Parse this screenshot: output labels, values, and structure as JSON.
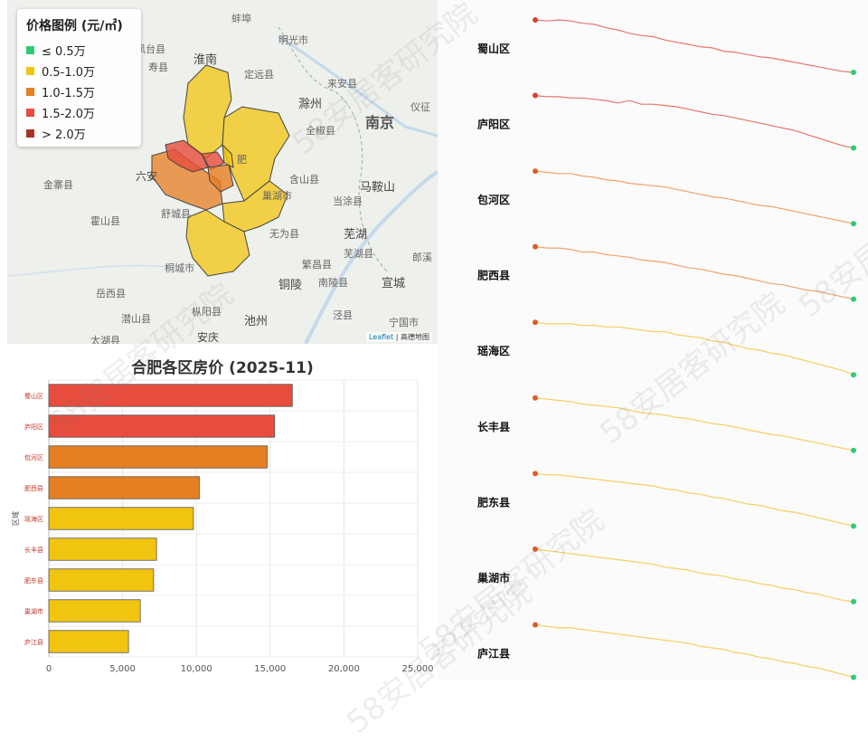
{
  "legend": {
    "title": "价格图例 (元/㎡)",
    "items": [
      {
        "label": "≤ 0.5万",
        "color": "#2ecc71"
      },
      {
        "label": "0.5-1.0万",
        "color": "#f1c40f"
      },
      {
        "label": "1.0-1.5万",
        "color": "#e67e22"
      },
      {
        "label": "1.5-2.0万",
        "color": "#e74c3c"
      },
      {
        "label": "> 2.0万",
        "color": "#a93226"
      }
    ]
  },
  "map": {
    "attribution_link": "Leaflet",
    "attribution_text": "| 高德地图",
    "places": [
      "蚌埠",
      "明光市",
      "凤台县",
      "淮南",
      "寿县",
      "定远县",
      "来安县",
      "滁州",
      "仪征",
      "南京",
      "全椒县",
      "六安",
      "金寨县",
      "马鞍山",
      "含山县",
      "当涂县",
      "霍山县",
      "舒城县",
      "无为县",
      "芜湖",
      "郎溪",
      "繁昌县",
      "芜湖县",
      "铜陵",
      "南陵县",
      "宣城",
      "桐城市",
      "岳西县",
      "潜山县",
      "枞阳县",
      "池州",
      "泾县",
      "宁国市",
      "太湖县",
      "安庆",
      "肥",
      "巢湖市"
    ]
  },
  "chart_data": {
    "type": "bar",
    "title": "合肥各区房价 (2025-11)",
    "ylabel": "区域",
    "categories": [
      "蜀山区",
      "庐阳区",
      "包河区",
      "肥西县",
      "瑶海区",
      "长丰县",
      "肥东县",
      "巢湖市",
      "庐江县"
    ],
    "values": [
      16500,
      15300,
      14800,
      10200,
      9800,
      7300,
      7100,
      6200,
      5400
    ],
    "colors": [
      "#e74c3c",
      "#e74c3c",
      "#e67e22",
      "#e67e22",
      "#f1c40f",
      "#f1c40f",
      "#f1c40f",
      "#f1c40f",
      "#f1c40f"
    ],
    "xlim": [
      0,
      25000
    ],
    "xticks": [
      0,
      5000,
      10000,
      15000,
      20000,
      25000
    ],
    "xtick_labels": [
      "0",
      "5,000",
      "10,000",
      "15,000",
      "20,000",
      "25,000"
    ],
    "grid": true
  },
  "trends": [
    {
      "name": "蜀山区",
      "color": "#e8756b",
      "start_color": "#d9412f",
      "values": [
        100,
        99,
        100,
        99,
        97,
        96,
        93,
        91,
        88,
        86,
        85,
        82,
        80,
        78,
        76,
        75,
        72,
        71,
        69,
        67,
        66,
        64,
        62,
        60,
        58,
        56,
        54,
        53
      ]
    },
    {
      "name": "庐阳区",
      "color": "#e8756b",
      "start_color": "#d9412f",
      "values": [
        100,
        99,
        99,
        98,
        98,
        97,
        96,
        94,
        96,
        93,
        93,
        92,
        91,
        89,
        87,
        85,
        84,
        82,
        80,
        78,
        76,
        74,
        72,
        69,
        66,
        63,
        60,
        58
      ]
    },
    {
      "name": "包河区",
      "color": "#f0a36b",
      "start_color": "#e05a2b",
      "values": [
        100,
        99,
        98,
        98,
        96,
        95,
        93,
        92,
        90,
        89,
        88,
        87,
        85,
        83,
        81,
        79,
        78,
        76,
        74,
        72,
        71,
        69,
        67,
        65,
        63,
        61,
        59,
        57
      ]
    },
    {
      "name": "肥西县",
      "color": "#f0a36b",
      "start_color": "#e05a2b",
      "values": [
        100,
        99,
        99,
        98,
        96,
        96,
        94,
        93,
        92,
        90,
        89,
        88,
        86,
        84,
        83,
        81,
        79,
        78,
        76,
        74,
        72,
        71,
        69,
        67,
        66,
        64,
        62,
        60
      ]
    },
    {
      "name": "瑶海区",
      "color": "#f5cf62",
      "start_color": "#e05a2b",
      "values": [
        100,
        99,
        99,
        99,
        98,
        98,
        97,
        97,
        96,
        95,
        94,
        94,
        92,
        91,
        90,
        88,
        87,
        85,
        83,
        82,
        80,
        79,
        77,
        75,
        73,
        71,
        69,
        66
      ]
    },
    {
      "name": "长丰县",
      "color": "#f5cf62",
      "start_color": "#e05a2b",
      "values": [
        100,
        99,
        98,
        97,
        95,
        94,
        93,
        92,
        90,
        88,
        87,
        86,
        84,
        83,
        81,
        79,
        78,
        76,
        74,
        72,
        70,
        69,
        67,
        65,
        63,
        61,
        59,
        57
      ]
    },
    {
      "name": "肥东县",
      "color": "#f5cf62",
      "start_color": "#e05a2b",
      "values": [
        100,
        99,
        99,
        98,
        97,
        96,
        95,
        94,
        93,
        92,
        91,
        89,
        88,
        86,
        85,
        83,
        82,
        80,
        78,
        77,
        75,
        73,
        72,
        70,
        68,
        66,
        64,
        62
      ]
    },
    {
      "name": "巢湖市",
      "color": "#f5cf62",
      "start_color": "#e05a2b",
      "values": [
        100,
        99,
        98,
        97,
        96,
        95,
        94,
        93,
        92,
        91,
        90,
        88,
        87,
        86,
        84,
        83,
        82,
        80,
        79,
        77,
        76,
        74,
        73,
        71,
        70,
        68,
        66,
        65
      ]
    },
    {
      "name": "庐江县",
      "color": "#f5cf62",
      "start_color": "#e05a2b",
      "values": [
        100,
        99,
        98,
        98,
        97,
        96,
        95,
        94,
        93,
        92,
        91,
        90,
        89,
        88,
        86,
        85,
        84,
        82,
        81,
        79,
        78,
        76,
        75,
        73,
        72,
        70,
        68,
        66
      ]
    }
  ],
  "trend_end_color": "#2ecc71",
  "watermarks": [
    "58安居客研究院",
    "58安居客研究院",
    "58安居客研究院",
    "58安居客研究院",
    "58安居客研究院",
    "58安居客研究院"
  ]
}
